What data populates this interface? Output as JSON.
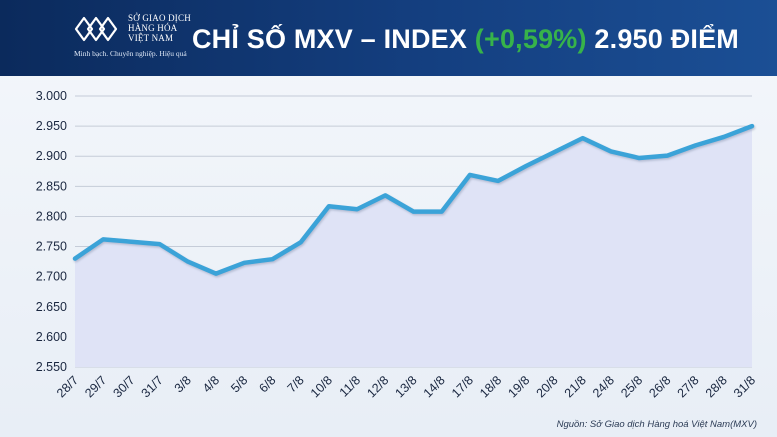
{
  "header": {
    "brand_lines": [
      "SỞ GIAO DỊCH",
      "HÀNG HÓA",
      "VIỆT NAM"
    ],
    "tagline": "Minh bạch. Chuyên nghiệp. Hiệu quả",
    "title_prefix": "CHỈ SỐ MXV – INDEX",
    "title_change": "(+0,59%)",
    "title_suffix": "2.950 ĐIỂM",
    "logo_icon": "mxv-logo-icon"
  },
  "colors": {
    "header_bg": "#143f80",
    "positive": "#37b34a",
    "line": "#3aa3d8",
    "area": "#dfe3f6"
  },
  "chart_data": {
    "type": "area",
    "x": [
      "28/7",
      "29/7",
      "30/7",
      "31/7",
      "3/8",
      "4/8",
      "5/8",
      "6/8",
      "7/8",
      "10/8",
      "11/8",
      "12/8",
      "13/8",
      "14/8",
      "17/8",
      "18/8",
      "19/8",
      "20/8",
      "21/8",
      "24/8",
      "25/8",
      "26/8",
      "27/8",
      "28/8",
      "31/8"
    ],
    "series": [
      {
        "values": [
          2730,
          2762,
          2758,
          2754,
          2725,
          2705,
          2723,
          2729,
          2757,
          2817,
          2812,
          2835,
          2808,
          2808,
          2869,
          2859,
          2884,
          2907,
          2930,
          2908,
          2897,
          2901,
          2918,
          2932,
          2950
        ]
      }
    ],
    "yticks": [
      "3.000",
      "2.950",
      "2.900",
      "2.850",
      "2.800",
      "2.750",
      "2.700",
      "2.650",
      "2.600",
      "2.550"
    ],
    "ylim": [
      2550,
      3000
    ],
    "grid": true
  },
  "source": "Nguồn: Sở Giao dịch Hàng hoá Việt Nam(MXV)"
}
